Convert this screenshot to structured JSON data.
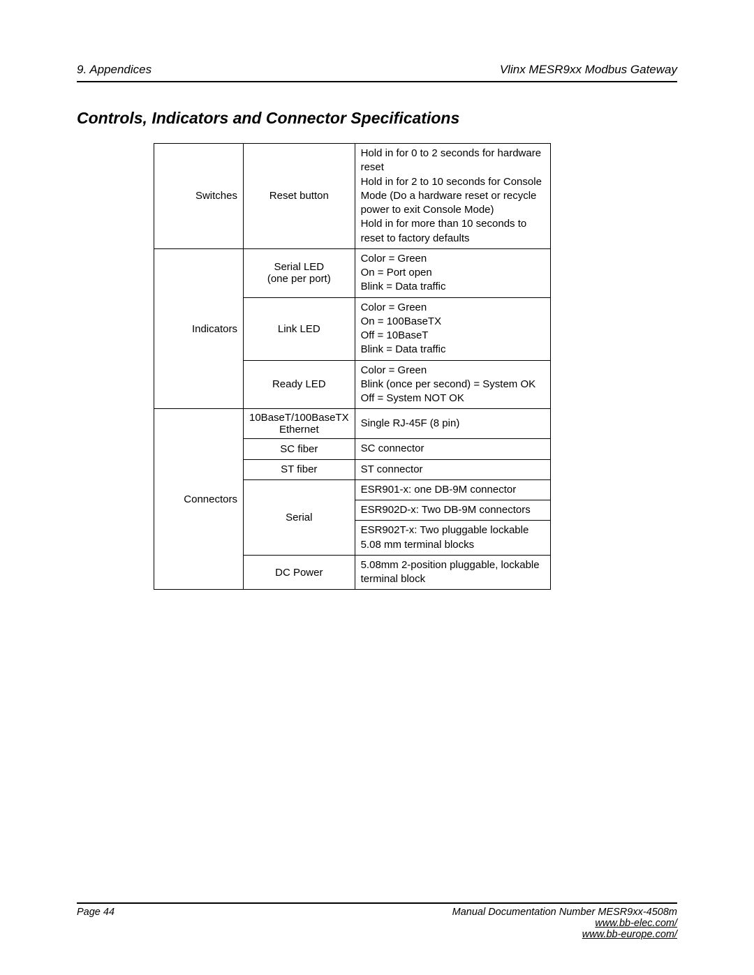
{
  "header": {
    "left": "9. Appendices",
    "right": "Vlinx MESR9xx Modbus Gateway"
  },
  "section_title": "Controls, Indicators and Connector Specifications",
  "table": {
    "rows": [
      {
        "category": "Switches",
        "category_rowspan": 1,
        "item": "Reset button",
        "item_rowspan": 1,
        "desc": "Hold in for 0 to 2 seconds for hardware reset\nHold in for 2 to 10 seconds for Console Mode (Do a hardware reset or recycle power to exit Console Mode)\nHold in for more than 10 seconds to reset to factory defaults"
      },
      {
        "category": "Indicators",
        "category_rowspan": 3,
        "item": "Serial LED\n(one per port)",
        "item_rowspan": 1,
        "desc": "Color = Green\nOn = Port open\nBlink = Data traffic"
      },
      {
        "item": "Link LED",
        "item_rowspan": 1,
        "desc": "Color = Green\nOn = 100BaseTX\nOff = 10BaseT\nBlink = Data traffic"
      },
      {
        "item": "Ready LED",
        "item_rowspan": 1,
        "desc": "Color = Green\nBlink (once per second) = System OK\nOff = System NOT OK"
      },
      {
        "category": "Connectors",
        "category_rowspan": 7,
        "item": "10BaseT/100BaseTX Ethernet",
        "item_rowspan": 1,
        "desc": "Single RJ-45F (8 pin)"
      },
      {
        "item": "SC fiber",
        "item_rowspan": 1,
        "desc": "SC connector"
      },
      {
        "item": "ST fiber",
        "item_rowspan": 1,
        "desc": "ST connector"
      },
      {
        "item": "Serial",
        "item_rowspan": 3,
        "desc": "ESR901-x: one DB-9M connector"
      },
      {
        "desc": "ESR902D-x: Two DB-9M connectors"
      },
      {
        "desc": "ESR902T-x: Two pluggable lockable 5.08 mm terminal blocks"
      },
      {
        "item": "DC Power",
        "item_rowspan": 1,
        "desc": "5.08mm 2-position pluggable, lockable terminal block"
      }
    ]
  },
  "footer": {
    "page": "Page 44",
    "docnum": "Manual Documentation Number MESR9xx-4508m",
    "link1": "www.bb-elec.com/",
    "link2": "www.bb-europe.com/"
  }
}
